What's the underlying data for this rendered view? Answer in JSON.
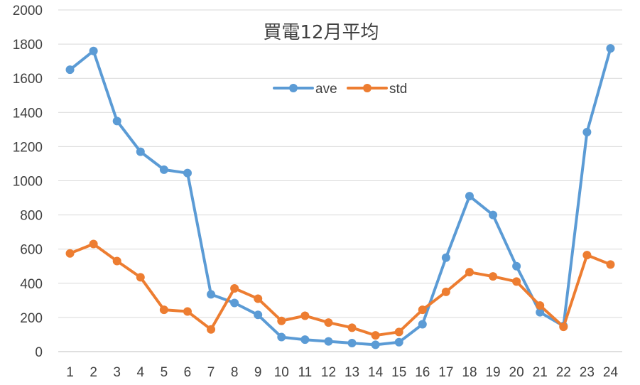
{
  "chart_data": {
    "type": "line",
    "title": "買電12月平均",
    "xlabel": "",
    "ylabel": "",
    "categories": [
      "1",
      "2",
      "3",
      "4",
      "5",
      "6",
      "7",
      "8",
      "9",
      "10",
      "11",
      "12",
      "13",
      "14",
      "15",
      "16",
      "17",
      "18",
      "19",
      "20",
      "21",
      "22",
      "23",
      "24"
    ],
    "ylim": [
      0,
      2000
    ],
    "yticks": [
      0,
      200,
      400,
      600,
      800,
      1000,
      1200,
      1400,
      1600,
      1800,
      2000
    ],
    "grid": true,
    "legend_position": "top-center",
    "series": [
      {
        "name": "ave",
        "color": "#5B9BD5",
        "values": [
          1650,
          1760,
          1350,
          1170,
          1065,
          1045,
          335,
          285,
          215,
          85,
          70,
          60,
          50,
          40,
          55,
          160,
          550,
          910,
          800,
          500,
          230,
          150,
          1285,
          1775
        ]
      },
      {
        "name": "std",
        "color": "#ED7D31",
        "values": [
          575,
          630,
          530,
          435,
          245,
          235,
          130,
          370,
          310,
          180,
          210,
          170,
          140,
          95,
          115,
          245,
          350,
          465,
          440,
          410,
          270,
          145,
          565,
          510
        ]
      }
    ]
  }
}
